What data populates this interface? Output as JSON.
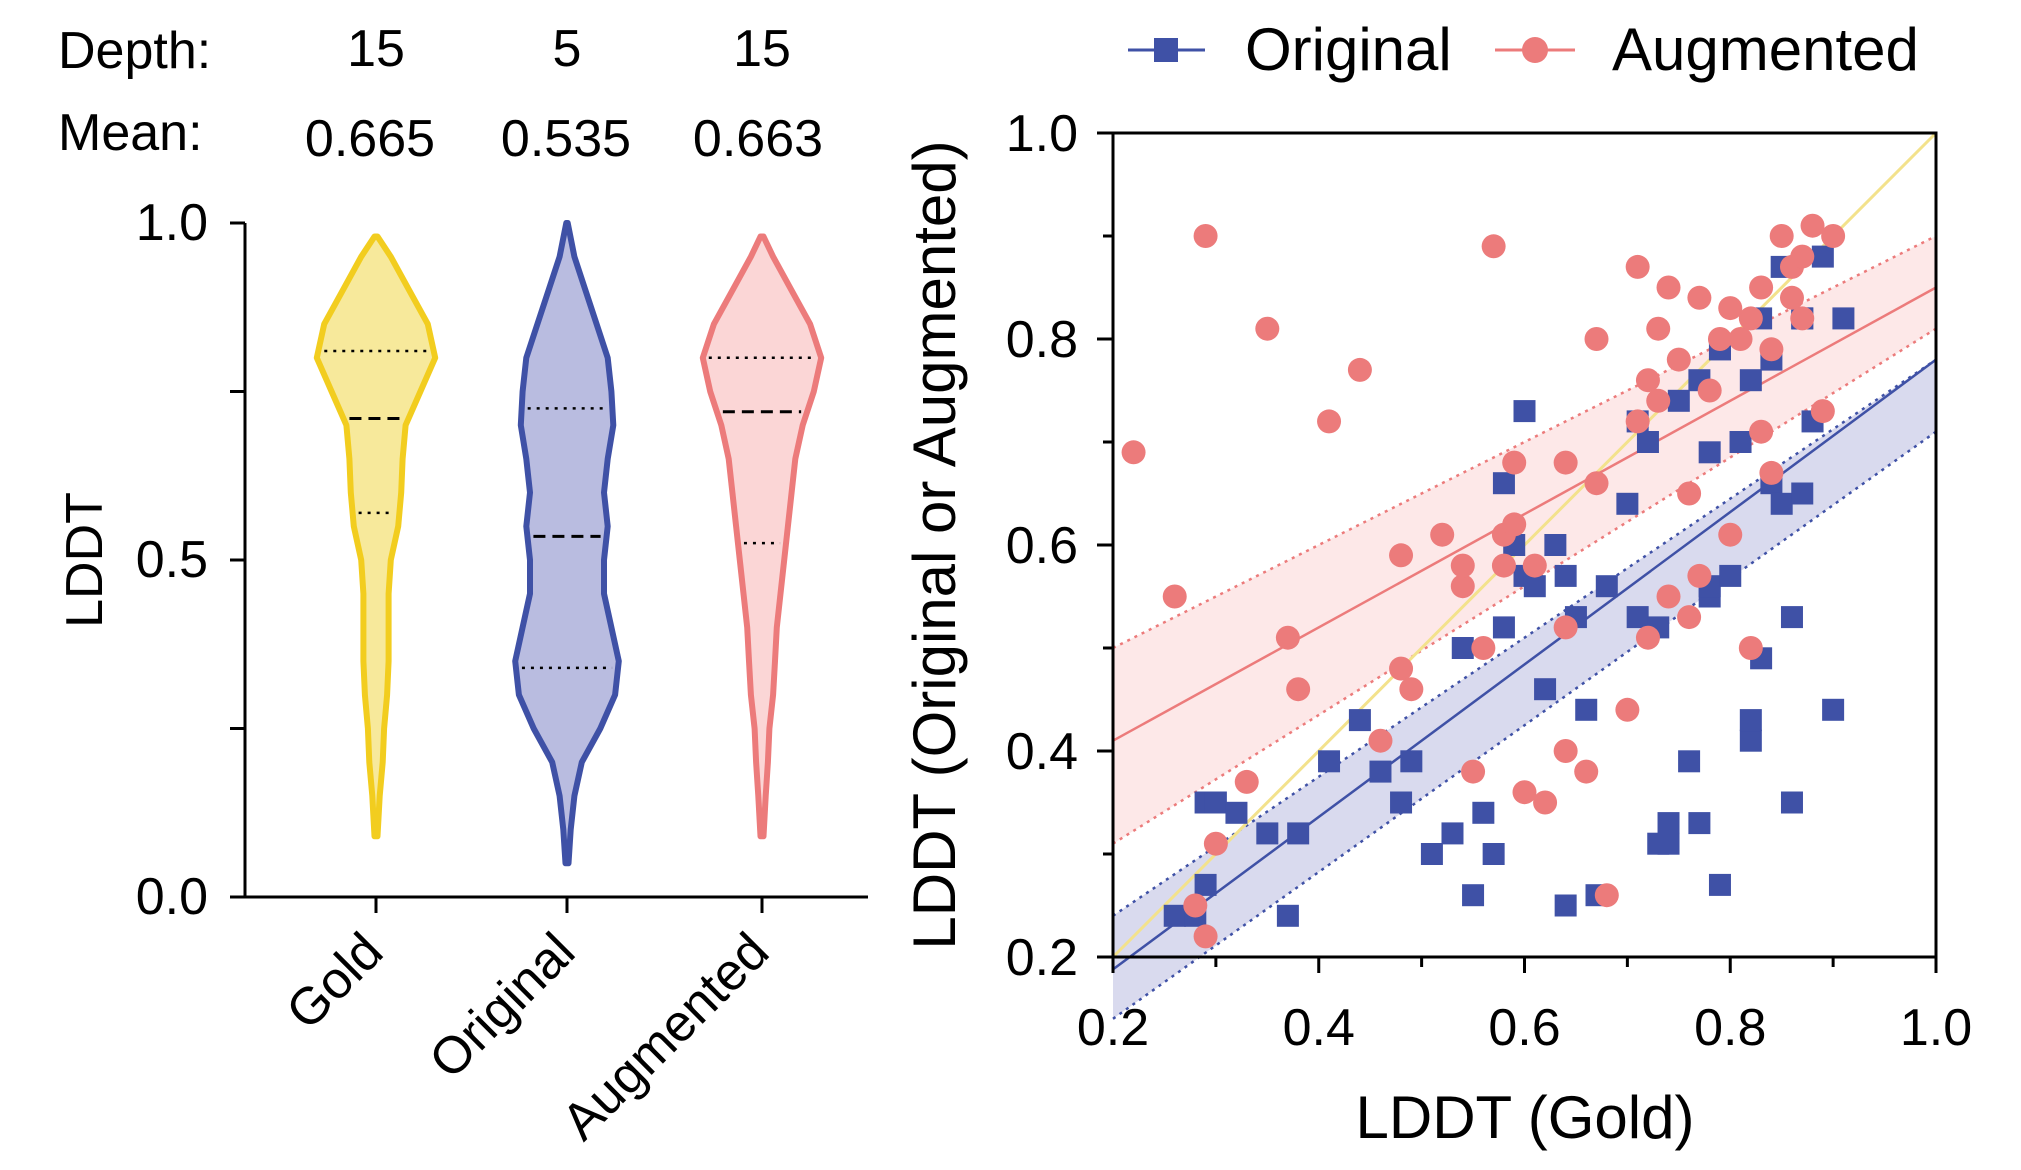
{
  "colors": {
    "gold": "#f2cd1f",
    "gold_fill": "#f7e99b",
    "original": "#3f51a6",
    "original_fill": "#b9bce0",
    "augmented": "#ec7b7b",
    "augmented_fill": "#fbd6d6",
    "identity_line": "#f3e28c"
  },
  "chart_data": [
    {
      "type": "violin",
      "ylabel": "LDDT",
      "ylim": [
        0.0,
        1.0
      ],
      "yticks": [
        "0.0",
        "0.5",
        "1.0"
      ],
      "depth_label": "Depth:",
      "mean_label": "Mean:",
      "categories": [
        {
          "name": "Gold",
          "depth": "15",
          "mean": "0.665",
          "median": 0.71,
          "q1": 0.57,
          "q3": 0.81,
          "min": 0.09,
          "max": 0.98,
          "profile": [
            [
              0.09,
              0.004
            ],
            [
              0.15,
              0.01
            ],
            [
              0.2,
              0.018
            ],
            [
              0.25,
              0.022
            ],
            [
              0.3,
              0.03
            ],
            [
              0.35,
              0.034
            ],
            [
              0.4,
              0.034
            ],
            [
              0.45,
              0.034
            ],
            [
              0.5,
              0.04
            ],
            [
              0.55,
              0.06
            ],
            [
              0.6,
              0.068
            ],
            [
              0.65,
              0.072
            ],
            [
              0.7,
              0.08
            ],
            [
              0.75,
              0.12
            ],
            [
              0.8,
              0.16
            ],
            [
              0.85,
              0.14
            ],
            [
              0.9,
              0.09
            ],
            [
              0.95,
              0.04
            ],
            [
              0.98,
              0.004
            ]
          ]
        },
        {
          "name": "Original",
          "depth": "5",
          "mean": "0.535",
          "median": 0.535,
          "q1": 0.34,
          "q3": 0.725,
          "min": 0.05,
          "max": 1.0,
          "profile": [
            [
              0.05,
              0.004
            ],
            [
              0.1,
              0.01
            ],
            [
              0.15,
              0.02
            ],
            [
              0.2,
              0.04
            ],
            [
              0.25,
              0.09
            ],
            [
              0.3,
              0.13
            ],
            [
              0.35,
              0.14
            ],
            [
              0.4,
              0.12
            ],
            [
              0.45,
              0.1
            ],
            [
              0.5,
              0.1
            ],
            [
              0.55,
              0.11
            ],
            [
              0.6,
              0.1
            ],
            [
              0.65,
              0.11
            ],
            [
              0.7,
              0.125
            ],
            [
              0.75,
              0.12
            ],
            [
              0.8,
              0.11
            ],
            [
              0.85,
              0.08
            ],
            [
              0.9,
              0.05
            ],
            [
              0.95,
              0.02
            ],
            [
              1.0,
              0.002
            ]
          ]
        },
        {
          "name": "Augmented",
          "depth": "15",
          "mean": "0.663",
          "median": 0.72,
          "q1": 0.525,
          "q3": 0.8,
          "min": 0.09,
          "max": 0.98,
          "profile": [
            [
              0.09,
              0.004
            ],
            [
              0.15,
              0.01
            ],
            [
              0.2,
              0.016
            ],
            [
              0.25,
              0.02
            ],
            [
              0.3,
              0.03
            ],
            [
              0.35,
              0.035
            ],
            [
              0.4,
              0.04
            ],
            [
              0.45,
              0.05
            ],
            [
              0.5,
              0.06
            ],
            [
              0.55,
              0.07
            ],
            [
              0.6,
              0.08
            ],
            [
              0.65,
              0.09
            ],
            [
              0.7,
              0.11
            ],
            [
              0.75,
              0.14
            ],
            [
              0.8,
              0.16
            ],
            [
              0.85,
              0.13
            ],
            [
              0.9,
              0.08
            ],
            [
              0.95,
              0.03
            ],
            [
              0.98,
              0.004
            ]
          ]
        }
      ]
    },
    {
      "type": "scatter",
      "xlabel": "LDDT (Gold)",
      "ylabel": "LDDT (Original or Augmented)",
      "xlim": [
        0.2,
        1.0
      ],
      "ylim": [
        0.2,
        1.0
      ],
      "xticks": [
        "0.2",
        "0.4",
        "0.6",
        "0.8",
        "1.0"
      ],
      "yticks": [
        "0.2",
        "0.4",
        "0.6",
        "0.8",
        "1.0"
      ],
      "legend": "top",
      "identity_line": [
        [
          0.2,
          0.2
        ],
        [
          1.0,
          1.0
        ]
      ],
      "series": [
        {
          "name": "Original",
          "marker": "square",
          "fit": {
            "slope": 0.74,
            "intercept": 0.04,
            "band_low": [
              [
                0.2,
                0.14
              ],
              [
                1.0,
                0.71
              ]
            ],
            "band_high": [
              [
                0.2,
                0.24
              ],
              [
                1.0,
                0.78
              ]
            ]
          },
          "points": [
            [
              0.26,
              0.24
            ],
            [
              0.28,
              0.24
            ],
            [
              0.29,
              0.27
            ],
            [
              0.29,
              0.35
            ],
            [
              0.3,
              0.35
            ],
            [
              0.32,
              0.34
            ],
            [
              0.35,
              0.32
            ],
            [
              0.37,
              0.24
            ],
            [
              0.38,
              0.32
            ],
            [
              0.41,
              0.39
            ],
            [
              0.44,
              0.43
            ],
            [
              0.46,
              0.38
            ],
            [
              0.48,
              0.35
            ],
            [
              0.49,
              0.39
            ],
            [
              0.51,
              0.3
            ],
            [
              0.53,
              0.32
            ],
            [
              0.54,
              0.5
            ],
            [
              0.55,
              0.26
            ],
            [
              0.56,
              0.34
            ],
            [
              0.57,
              0.3
            ],
            [
              0.58,
              0.66
            ],
            [
              0.58,
              0.52
            ],
            [
              0.59,
              0.6
            ],
            [
              0.6,
              0.57
            ],
            [
              0.6,
              0.73
            ],
            [
              0.61,
              0.56
            ],
            [
              0.62,
              0.46
            ],
            [
              0.63,
              0.6
            ],
            [
              0.64,
              0.57
            ],
            [
              0.64,
              0.25
            ],
            [
              0.65,
              0.53
            ],
            [
              0.66,
              0.44
            ],
            [
              0.67,
              0.26
            ],
            [
              0.68,
              0.56
            ],
            [
              0.7,
              0.64
            ],
            [
              0.71,
              0.72
            ],
            [
              0.71,
              0.53
            ],
            [
              0.72,
              0.7
            ],
            [
              0.73,
              0.52
            ],
            [
              0.73,
              0.31
            ],
            [
              0.74,
              0.33
            ],
            [
              0.74,
              0.31
            ],
            [
              0.75,
              0.74
            ],
            [
              0.76,
              0.39
            ],
            [
              0.77,
              0.33
            ],
            [
              0.77,
              0.76
            ],
            [
              0.78,
              0.55
            ],
            [
              0.78,
              0.56
            ],
            [
              0.78,
              0.69
            ],
            [
              0.79,
              0.27
            ],
            [
              0.79,
              0.79
            ],
            [
              0.79,
              0.79
            ],
            [
              0.8,
              0.57
            ],
            [
              0.81,
              0.7
            ],
            [
              0.82,
              0.41
            ],
            [
              0.82,
              0.43
            ],
            [
              0.82,
              0.76
            ],
            [
              0.83,
              0.49
            ],
            [
              0.83,
              0.82
            ],
            [
              0.84,
              0.66
            ],
            [
              0.84,
              0.78
            ],
            [
              0.85,
              0.64
            ],
            [
              0.85,
              0.87
            ],
            [
              0.86,
              0.35
            ],
            [
              0.86,
              0.53
            ],
            [
              0.87,
              0.65
            ],
            [
              0.87,
              0.82
            ],
            [
              0.87,
              0.82
            ],
            [
              0.88,
              0.72
            ],
            [
              0.89,
              0.88
            ],
            [
              0.9,
              0.44
            ],
            [
              0.91,
              0.82
            ]
          ]
        },
        {
          "name": "Augmented",
          "marker": "circle",
          "fit": {
            "slope": 0.55,
            "intercept": 0.3,
            "band_low": [
              [
                0.2,
                0.31
              ],
              [
                1.0,
                0.81
              ]
            ],
            "band_high": [
              [
                0.2,
                0.5
              ],
              [
                1.0,
                0.9
              ]
            ]
          },
          "points": [
            [
              0.22,
              0.69
            ],
            [
              0.26,
              0.55
            ],
            [
              0.28,
              0.25
            ],
            [
              0.29,
              0.22
            ],
            [
              0.29,
              0.9
            ],
            [
              0.3,
              0.31
            ],
            [
              0.33,
              0.37
            ],
            [
              0.35,
              0.81
            ],
            [
              0.37,
              0.51
            ],
            [
              0.38,
              0.46
            ],
            [
              0.41,
              0.72
            ],
            [
              0.44,
              0.77
            ],
            [
              0.46,
              0.41
            ],
            [
              0.48,
              0.48
            ],
            [
              0.48,
              0.59
            ],
            [
              0.49,
              0.46
            ],
            [
              0.52,
              0.61
            ],
            [
              0.54,
              0.56
            ],
            [
              0.54,
              0.58
            ],
            [
              0.55,
              0.38
            ],
            [
              0.56,
              0.5
            ],
            [
              0.57,
              0.89
            ],
            [
              0.58,
              0.61
            ],
            [
              0.58,
              0.58
            ],
            [
              0.59,
              0.62
            ],
            [
              0.59,
              0.68
            ],
            [
              0.6,
              0.36
            ],
            [
              0.61,
              0.58
            ],
            [
              0.62,
              0.35
            ],
            [
              0.64,
              0.4
            ],
            [
              0.64,
              0.68
            ],
            [
              0.64,
              0.52
            ],
            [
              0.66,
              0.38
            ],
            [
              0.67,
              0.66
            ],
            [
              0.67,
              0.8
            ],
            [
              0.68,
              0.26
            ],
            [
              0.7,
              0.44
            ],
            [
              0.71,
              0.87
            ],
            [
              0.71,
              0.72
            ],
            [
              0.72,
              0.51
            ],
            [
              0.72,
              0.76
            ],
            [
              0.73,
              0.81
            ],
            [
              0.73,
              0.74
            ],
            [
              0.74,
              0.55
            ],
            [
              0.74,
              0.85
            ],
            [
              0.75,
              0.78
            ],
            [
              0.76,
              0.53
            ],
            [
              0.76,
              0.65
            ],
            [
              0.77,
              0.57
            ],
            [
              0.77,
              0.84
            ],
            [
              0.78,
              0.75
            ],
            [
              0.79,
              0.8
            ],
            [
              0.8,
              0.83
            ],
            [
              0.8,
              0.61
            ],
            [
              0.81,
              0.8
            ],
            [
              0.82,
              0.5
            ],
            [
              0.82,
              0.82
            ],
            [
              0.83,
              0.71
            ],
            [
              0.83,
              0.85
            ],
            [
              0.84,
              0.67
            ],
            [
              0.84,
              0.79
            ],
            [
              0.85,
              0.9
            ],
            [
              0.86,
              0.84
            ],
            [
              0.86,
              0.87
            ],
            [
              0.87,
              0.88
            ],
            [
              0.87,
              0.82
            ],
            [
              0.88,
              0.91
            ],
            [
              0.89,
              0.73
            ],
            [
              0.9,
              0.9
            ]
          ]
        }
      ]
    }
  ]
}
